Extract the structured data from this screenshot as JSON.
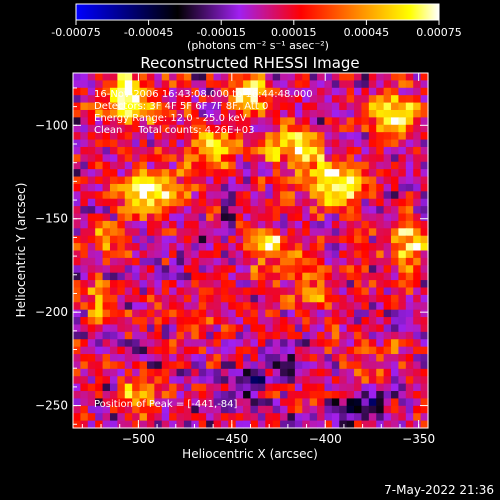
{
  "chart_data": {
    "type": "heatmap",
    "title": "Reconstructed RHESSI Image",
    "xlabel": "Heliocentric X (arcsec)",
    "ylabel": "Heliocentric Y (arcsec)",
    "xlim": [
      -535,
      -345
    ],
    "ylim": [
      -262,
      -72
    ],
    "xticks": [
      -500,
      -450,
      -400,
      -350
    ],
    "xtick_labels": [
      "−500",
      "−450",
      "−400",
      "−350"
    ],
    "yticks": [
      -100,
      -150,
      -200,
      -250
    ],
    "ytick_labels": [
      "−100",
      "−150",
      "−200",
      "−250"
    ],
    "colorbar": {
      "range": [
        -0.00075,
        0.00075
      ],
      "ticks": [
        -0.00075,
        -0.00045,
        -0.00015,
        0.00015,
        0.00045,
        0.00075
      ],
      "tick_labels": [
        "-0.00075",
        "-0.00045",
        "-0.00015",
        "0.00015",
        "0.00045",
        "0.00075"
      ],
      "unit_label": "(photons cm⁻² s⁻¹ asec⁻²)",
      "colors": [
        "#0000ff",
        "#000000",
        "#a020f0",
        "#ff0000",
        "#ff8c00",
        "#ffff00",
        "#ffffff"
      ]
    },
    "annotations": [
      "16-Nov-2006 16:43:08.000 to 16:44:48.000",
      "Detectors: 3F 4F 5F 6F 7F 8F, Att 0",
      "Energy Range: 12.0 - 25.0 keV",
      "Clean     Total counts: 4.26E+03"
    ],
    "peak_label": "Position of Peak = [-441,-84]",
    "peak": [
      -441,
      -84
    ],
    "blobs": [
      {
        "x": -505,
        "y": -85,
        "sx": 10,
        "sy": 9,
        "a": 0.00075
      },
      {
        "x": -495,
        "y": -135,
        "sx": 11,
        "sy": 8,
        "a": 0.0007
      },
      {
        "x": -460,
        "y": -110,
        "sx": 9,
        "sy": 8,
        "a": 0.0006
      },
      {
        "x": -441,
        "y": -84,
        "sx": 7,
        "sy": 6,
        "a": 0.00075
      },
      {
        "x": -420,
        "y": -110,
        "sx": 10,
        "sy": 8,
        "a": 0.00055
      },
      {
        "x": -395,
        "y": -130,
        "sx": 12,
        "sy": 9,
        "a": 0.0007
      },
      {
        "x": -365,
        "y": -95,
        "sx": 8,
        "sy": 8,
        "a": 0.00075
      },
      {
        "x": -430,
        "y": -165,
        "sx": 9,
        "sy": 8,
        "a": 0.0005
      },
      {
        "x": -355,
        "y": -165,
        "sx": 7,
        "sy": 9,
        "a": 0.00065
      },
      {
        "x": -520,
        "y": -195,
        "sx": 6,
        "sy": 7,
        "a": 0.00045
      },
      {
        "x": -500,
        "y": -245,
        "sx": 8,
        "sy": 6,
        "a": 0.00055
      },
      {
        "x": -405,
        "y": -185,
        "sx": 8,
        "sy": 7,
        "a": 0.00035
      },
      {
        "x": -370,
        "y": -225,
        "sx": 9,
        "sy": 8,
        "a": 0.0003
      },
      {
        "x": -470,
        "y": -205,
        "sx": 8,
        "sy": 6,
        "a": 0.00025
      },
      {
        "x": -440,
        "y": -240,
        "sx": 7,
        "sy": 7,
        "a": -0.0003
      },
      {
        "x": -380,
        "y": -250,
        "sx": 10,
        "sy": 6,
        "a": -0.00035
      },
      {
        "x": -520,
        "y": -160,
        "sx": 6,
        "sy": 6,
        "a": 0.0004
      }
    ]
  },
  "footer": {
    "timestamp": "7-May-2022 21:36"
  }
}
